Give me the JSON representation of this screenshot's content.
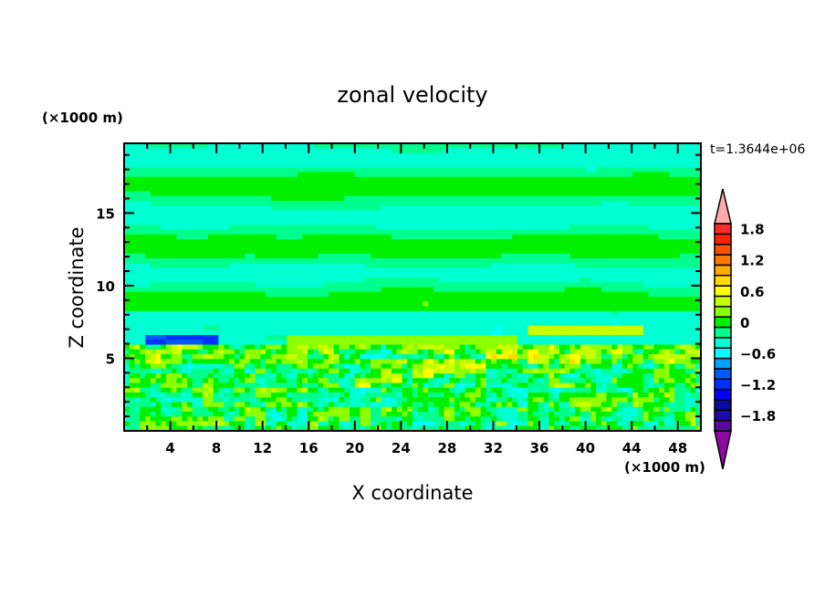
{
  "chart_data": {
    "type": "heatmap",
    "subtype": "filled-contour",
    "title": "zonal velocity",
    "xlabel": "X coordinate",
    "ylabel": "Z coordinate",
    "x_unit_label": "(×1000 m)",
    "y_unit_label": "(×1000 m)",
    "time_label": "t=1.3644e+06",
    "xlim": [
      0,
      50
    ],
    "ylim": [
      0,
      19.8
    ],
    "xticks": [
      "4",
      "8",
      "12",
      "16",
      "20",
      "24",
      "28",
      "32",
      "36",
      "40",
      "44",
      "48"
    ],
    "yticks": [
      "5",
      "10",
      "15"
    ],
    "colorbar": {
      "levels": [
        -2,
        -1.8,
        -1.6,
        -1.4,
        -1.2,
        -1,
        -0.8,
        -0.6,
        -0.4,
        -0.2,
        0,
        0.2,
        0.4,
        0.6,
        0.8,
        1,
        1.2,
        1.4,
        1.6,
        1.8,
        2
      ],
      "tick_labels": [
        "1.8",
        "1.2",
        "0.6",
        "0",
        "−0.6",
        "−1.2",
        "−1.8"
      ],
      "tick_values": [
        1.8,
        1.2,
        0.6,
        0,
        -0.6,
        -1.2,
        -1.8
      ],
      "colors": [
        "#5a0aa0",
        "#1e0aa8",
        "#0a0a9c",
        "#0000ff",
        "#0032ff",
        "#005aff",
        "#00a0ff",
        "#00ffff",
        "#00ffd2",
        "#00ff8c",
        "#00f000",
        "#8cff00",
        "#c8ff00",
        "#ffff00",
        "#ffdc00",
        "#ffaa00",
        "#ff7800",
        "#ff5000",
        "#ff2200",
        "#ff2a2a"
      ],
      "over_color": "#ffaaaa",
      "under_color": "#8c0aa0"
    }
  }
}
